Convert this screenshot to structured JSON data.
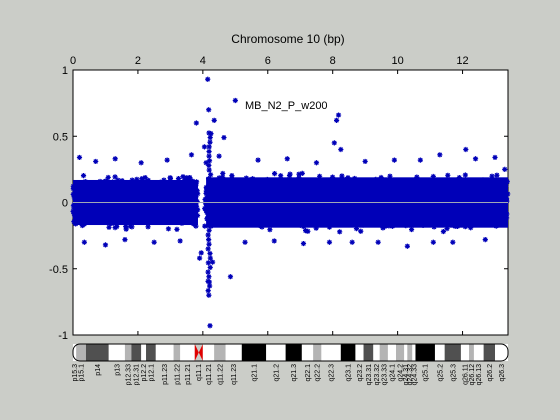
{
  "chart_data": {
    "type": "scatter",
    "title": "Chromosome 10 (bp)",
    "annotation": "MB_N2_P_w200",
    "xlim": [
      0,
      13.4
    ],
    "ylim": [
      -1,
      1
    ],
    "x_ticks": [
      0,
      2,
      4,
      6,
      8,
      10,
      12
    ],
    "y_ticks": [
      1,
      0.5,
      0,
      -0.5,
      -1
    ],
    "x_tick_labels": [
      "0",
      "2",
      "4",
      "6",
      "8",
      "10",
      "12"
    ],
    "y_tick_labels": [
      "1",
      "0.5",
      "0",
      "-0.5",
      "-1"
    ],
    "x_axis_position": "top",
    "grid": false,
    "baseline_y": 0,
    "colors": {
      "points": "#0000b8",
      "baseline": "#a0a8b4",
      "background": "#cbcdc8",
      "centromere": "#e00000"
    },
    "dense_band": {
      "x_range": [
        0,
        13.4
      ],
      "y_range": [
        -0.22,
        0.22
      ],
      "note": "thousands of points, symmetric band around 0"
    },
    "outliers": [
      {
        "x": 0.2,
        "y": 0.34
      },
      {
        "x": 0.35,
        "y": -0.3
      },
      {
        "x": 0.7,
        "y": 0.31
      },
      {
        "x": 1.0,
        "y": -0.32
      },
      {
        "x": 1.3,
        "y": 0.33
      },
      {
        "x": 1.6,
        "y": -0.28
      },
      {
        "x": 2.1,
        "y": 0.3
      },
      {
        "x": 2.5,
        "y": -0.3
      },
      {
        "x": 2.9,
        "y": 0.32
      },
      {
        "x": 3.3,
        "y": -0.29
      },
      {
        "x": 3.65,
        "y": 0.36
      },
      {
        "x": 3.8,
        "y": 0.6
      },
      {
        "x": 3.9,
        "y": -0.42
      },
      {
        "x": 3.95,
        "y": -0.38
      },
      {
        "x": 4.05,
        "y": 0.42
      },
      {
        "x": 4.1,
        "y": 0.3
      },
      {
        "x": 4.15,
        "y": 0.93
      },
      {
        "x": 4.18,
        "y": 0.7
      },
      {
        "x": 4.2,
        "y": -0.6
      },
      {
        "x": 4.22,
        "y": -0.93
      },
      {
        "x": 4.25,
        "y": 0.52
      },
      {
        "x": 4.3,
        "y": -0.45
      },
      {
        "x": 4.35,
        "y": 0.62
      },
      {
        "x": 4.5,
        "y": 0.35
      },
      {
        "x": 4.65,
        "y": 0.49
      },
      {
        "x": 4.85,
        "y": -0.56
      },
      {
        "x": 5.0,
        "y": 0.77
      },
      {
        "x": 5.3,
        "y": -0.3
      },
      {
        "x": 5.7,
        "y": 0.32
      },
      {
        "x": 6.2,
        "y": -0.29
      },
      {
        "x": 6.6,
        "y": 0.33
      },
      {
        "x": 7.1,
        "y": -0.31
      },
      {
        "x": 7.5,
        "y": 0.3
      },
      {
        "x": 7.9,
        "y": -0.3
      },
      {
        "x": 8.05,
        "y": 0.45
      },
      {
        "x": 8.12,
        "y": 0.62
      },
      {
        "x": 8.18,
        "y": 0.66
      },
      {
        "x": 8.25,
        "y": 0.4
      },
      {
        "x": 8.6,
        "y": -0.3
      },
      {
        "x": 9.0,
        "y": 0.31
      },
      {
        "x": 9.4,
        "y": -0.3
      },
      {
        "x": 9.9,
        "y": 0.32
      },
      {
        "x": 10.3,
        "y": -0.33
      },
      {
        "x": 10.7,
        "y": 0.32
      },
      {
        "x": 11.1,
        "y": -0.3
      },
      {
        "x": 11.3,
        "y": 0.36
      },
      {
        "x": 11.7,
        "y": -0.3
      },
      {
        "x": 12.1,
        "y": 0.4
      },
      {
        "x": 12.4,
        "y": 0.33
      },
      {
        "x": 12.7,
        "y": -0.28
      },
      {
        "x": 13.0,
        "y": 0.34
      },
      {
        "x": 13.3,
        "y": 0.25
      }
    ],
    "ideogram": {
      "bands": [
        {
          "label": "p15.3",
          "start": 0,
          "end": 0.1,
          "stain": "white"
        },
        {
          "label": "p15.1",
          "start": 0.1,
          "end": 0.4,
          "stain": "gray"
        },
        {
          "label": "p14",
          "start": 0.4,
          "end": 1.1,
          "stain": "dark"
        },
        {
          "label": "p13",
          "start": 1.1,
          "end": 1.6,
          "stain": "white"
        },
        {
          "label": "p12.33",
          "start": 1.6,
          "end": 1.8,
          "stain": "gray"
        },
        {
          "label": "p12.31",
          "start": 1.8,
          "end": 2.1,
          "stain": "dark"
        },
        {
          "label": "p12.2",
          "start": 2.1,
          "end": 2.25,
          "stain": "white"
        },
        {
          "label": "p12.1",
          "start": 2.25,
          "end": 2.55,
          "stain": "dark"
        },
        {
          "label": "p11.23",
          "start": 2.55,
          "end": 3.1,
          "stain": "white"
        },
        {
          "label": "p11.22",
          "start": 3.1,
          "end": 3.3,
          "stain": "gray"
        },
        {
          "label": "p11.21",
          "start": 3.3,
          "end": 3.75,
          "stain": "white"
        },
        {
          "label": "q11.1",
          "start": 3.75,
          "end": 4.0,
          "stain": "centromere"
        },
        {
          "label": "q11.21",
          "start": 4.0,
          "end": 4.35,
          "stain": "white"
        },
        {
          "label": "q11.22",
          "start": 4.35,
          "end": 4.7,
          "stain": "gray"
        },
        {
          "label": "q11.23",
          "start": 4.7,
          "end": 5.2,
          "stain": "white"
        },
        {
          "label": "q21.1",
          "start": 5.2,
          "end": 5.95,
          "stain": "black"
        },
        {
          "label": "q21.2",
          "start": 5.95,
          "end": 6.55,
          "stain": "white"
        },
        {
          "label": "q21.3",
          "start": 6.55,
          "end": 7.05,
          "stain": "black"
        },
        {
          "label": "q22.1",
          "start": 7.05,
          "end": 7.4,
          "stain": "white"
        },
        {
          "label": "q22.2",
          "start": 7.4,
          "end": 7.65,
          "stain": "gray"
        },
        {
          "label": "q22.3",
          "start": 7.65,
          "end": 8.25,
          "stain": "white"
        },
        {
          "label": "q23.1",
          "start": 8.25,
          "end": 8.7,
          "stain": "black"
        },
        {
          "label": "q23.2",
          "start": 8.7,
          "end": 8.95,
          "stain": "white"
        },
        {
          "label": "q23.31",
          "start": 8.95,
          "end": 9.25,
          "stain": "dark"
        },
        {
          "label": "q23.32",
          "start": 9.25,
          "end": 9.45,
          "stain": "white"
        },
        {
          "label": "q23.33",
          "start": 9.45,
          "end": 9.7,
          "stain": "gray"
        },
        {
          "label": "q24.1",
          "start": 9.7,
          "end": 9.95,
          "stain": "white"
        },
        {
          "label": "q24.2",
          "start": 9.95,
          "end": 10.2,
          "stain": "gray"
        },
        {
          "label": "q24.31",
          "start": 10.2,
          "end": 10.3,
          "stain": "white"
        },
        {
          "label": "q24.32",
          "start": 10.3,
          "end": 10.45,
          "stain": "gray"
        },
        {
          "label": "q24.33",
          "start": 10.45,
          "end": 10.55,
          "stain": "white"
        },
        {
          "label": "q25.1",
          "start": 10.55,
          "end": 11.15,
          "stain": "black"
        },
        {
          "label": "q25.2",
          "start": 11.15,
          "end": 11.45,
          "stain": "white"
        },
        {
          "label": "q25.3",
          "start": 11.45,
          "end": 11.95,
          "stain": "dark"
        },
        {
          "label": "q26.11",
          "start": 11.95,
          "end": 12.2,
          "stain": "white"
        },
        {
          "label": "q26.12",
          "start": 12.2,
          "end": 12.35,
          "stain": "gray"
        },
        {
          "label": "q26.13",
          "start": 12.35,
          "end": 12.65,
          "stain": "white"
        },
        {
          "label": "q26.2",
          "start": 12.65,
          "end": 13.0,
          "stain": "dark"
        },
        {
          "label": "q26.3",
          "start": 13.0,
          "end": 13.4,
          "stain": "white"
        }
      ]
    }
  }
}
